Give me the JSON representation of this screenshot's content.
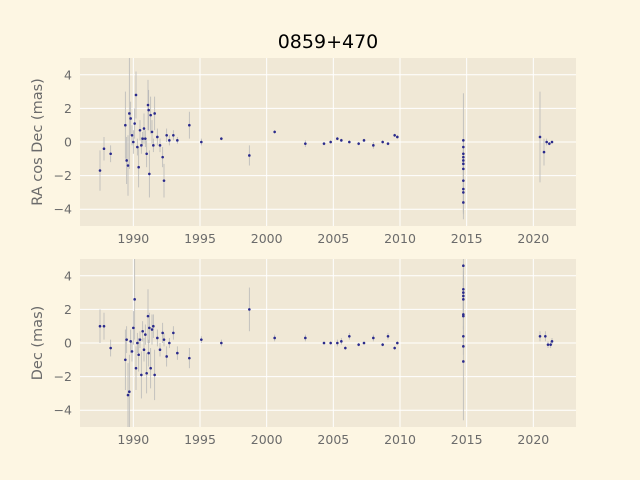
{
  "chart_data": [
    {
      "type": "scatter",
      "title": "0859+470",
      "ylabel": "RA cos Dec (mas)",
      "xlim": [
        1986,
        2023.2
      ],
      "ylim": [
        -5,
        5
      ],
      "xticks": [
        "1990",
        "1995",
        "2000",
        "2005",
        "2010",
        "2015",
        "2020"
      ],
      "yticks": [
        "4",
        "2",
        "0",
        "−2",
        "−4"
      ],
      "grid": true,
      "series": [
        {
          "points": [
            [
              1987.5,
              -1.7,
              1.2
            ],
            [
              1987.8,
              -0.4,
              0.7
            ],
            [
              1988.3,
              -0.7,
              0.5
            ],
            [
              1989.4,
              1.0,
              2.0
            ],
            [
              1989.5,
              -1.1,
              1.4
            ],
            [
              1989.6,
              -1.4,
              1.8
            ],
            [
              1989.7,
              1.7,
              3.3
            ],
            [
              1989.8,
              1.4,
              1.0
            ],
            [
              1989.9,
              0.4,
              0.6
            ],
            [
              1990.0,
              0.0,
              0.7
            ],
            [
              1990.1,
              1.1,
              0.9
            ],
            [
              1990.2,
              2.8,
              1.4
            ],
            [
              1990.3,
              -0.3,
              0.5
            ],
            [
              1990.4,
              -1.5,
              1.2
            ],
            [
              1990.5,
              0.7,
              0.6
            ],
            [
              1990.6,
              -0.2,
              0.5
            ],
            [
              1990.7,
              0.2,
              0.4
            ],
            [
              1990.8,
              0.8,
              0.9
            ],
            [
              1990.9,
              0.2,
              0.5
            ],
            [
              1991.0,
              -0.7,
              0.8
            ],
            [
              1991.1,
              2.2,
              1.5
            ],
            [
              1991.15,
              1.9,
              1.2
            ],
            [
              1991.2,
              -1.9,
              1.4
            ],
            [
              1991.3,
              1.6,
              1.1
            ],
            [
              1991.4,
              0.6,
              0.7
            ],
            [
              1991.5,
              -0.2,
              0.4
            ],
            [
              1991.6,
              1.7,
              1.0
            ],
            [
              1991.8,
              0.3,
              0.5
            ],
            [
              1992.0,
              -0.2,
              0.4
            ],
            [
              1992.2,
              -0.9,
              0.6
            ],
            [
              1992.3,
              -2.3,
              1.0
            ],
            [
              1992.5,
              0.4,
              0.4
            ],
            [
              1992.7,
              0.1,
              0.3
            ],
            [
              1993.0,
              0.4,
              0.3
            ],
            [
              1993.3,
              0.1,
              0.2
            ],
            [
              1994.2,
              1.0,
              0.8
            ],
            [
              1995.1,
              0.0,
              0.2
            ],
            [
              1996.6,
              0.2,
              0.1
            ],
            [
              1998.7,
              -0.8,
              0.6
            ],
            [
              2000.6,
              0.6,
              0.1
            ],
            [
              2002.9,
              -0.1,
              0.2
            ],
            [
              2004.3,
              -0.1,
              0.1
            ],
            [
              2004.8,
              0.0,
              0.1
            ],
            [
              2005.3,
              0.2,
              0.1
            ],
            [
              2005.6,
              0.1,
              0.1
            ],
            [
              2006.2,
              0.0,
              0.1
            ],
            [
              2006.9,
              -0.1,
              0.1
            ],
            [
              2007.3,
              0.1,
              0.1
            ],
            [
              2008.0,
              -0.2,
              0.2
            ],
            [
              2008.7,
              0.0,
              0.1
            ],
            [
              2009.1,
              -0.1,
              0.1
            ],
            [
              2009.6,
              0.4,
              0.1
            ],
            [
              2009.8,
              0.3,
              0.1
            ],
            [
              2014.75,
              0.1,
              2.8
            ],
            [
              2014.75,
              -0.3,
              0.4
            ],
            [
              2014.75,
              -0.7,
              0.6
            ],
            [
              2014.75,
              -0.9,
              0.7
            ],
            [
              2014.75,
              -1.1,
              0.5
            ],
            [
              2014.75,
              -1.3,
              0.8
            ],
            [
              2014.75,
              -1.6,
              1.0
            ],
            [
              2014.75,
              -2.3,
              1.2
            ],
            [
              2014.75,
              -2.8,
              1.4
            ],
            [
              2014.75,
              -3.0,
              1.3
            ],
            [
              2014.75,
              -3.6,
              1.0
            ],
            [
              2020.5,
              0.3,
              2.7
            ],
            [
              2020.8,
              -0.6,
              0.8
            ],
            [
              2021.0,
              0.0,
              0.2
            ],
            [
              2021.2,
              -0.1,
              0.1
            ],
            [
              2021.4,
              0.0,
              0.1
            ]
          ]
        }
      ]
    },
    {
      "type": "scatter",
      "ylabel": "Dec (mas)",
      "xlim": [
        1986,
        2023.2
      ],
      "ylim": [
        -5,
        5
      ],
      "xticks": [
        "1990",
        "1995",
        "2000",
        "2005",
        "2010",
        "2015",
        "2020"
      ],
      "yticks": [
        "4",
        "2",
        "0",
        "−2",
        "−4"
      ],
      "grid": true,
      "series": [
        {
          "points": [
            [
              1987.5,
              1.0,
              1.0
            ],
            [
              1987.8,
              1.0,
              0.8
            ],
            [
              1988.3,
              -0.3,
              0.5
            ],
            [
              1989.4,
              -1.0,
              1.8
            ],
            [
              1989.5,
              0.2,
              0.8
            ],
            [
              1989.6,
              -3.1,
              1.9
            ],
            [
              1989.7,
              -2.9,
              2.2
            ],
            [
              1989.8,
              0.1,
              0.7
            ],
            [
              1989.9,
              -0.5,
              0.6
            ],
            [
              1990.0,
              0.9,
              1.0
            ],
            [
              1990.1,
              2.6,
              2.4
            ],
            [
              1990.2,
              -1.5,
              1.3
            ],
            [
              1990.3,
              0.0,
              0.6
            ],
            [
              1990.4,
              -0.7,
              1.0
            ],
            [
              1990.5,
              0.2,
              0.5
            ],
            [
              1990.6,
              -1.9,
              1.4
            ],
            [
              1990.7,
              0.7,
              0.6
            ],
            [
              1990.8,
              -0.4,
              0.7
            ],
            [
              1990.9,
              0.5,
              0.6
            ],
            [
              1991.0,
              -1.8,
              1.2
            ],
            [
              1991.1,
              1.6,
              1.6
            ],
            [
              1991.15,
              -0.6,
              0.8
            ],
            [
              1991.2,
              0.9,
              0.9
            ],
            [
              1991.3,
              -1.5,
              1.2
            ],
            [
              1991.4,
              0.8,
              0.9
            ],
            [
              1991.5,
              1.0,
              0.7
            ],
            [
              1991.6,
              -1.9,
              1.5
            ],
            [
              1991.8,
              0.3,
              0.5
            ],
            [
              1992.0,
              -0.4,
              0.4
            ],
            [
              1992.2,
              0.6,
              0.6
            ],
            [
              1992.3,
              0.2,
              0.4
            ],
            [
              1992.5,
              -0.8,
              0.6
            ],
            [
              1992.7,
              0.0,
              0.3
            ],
            [
              1993.0,
              0.6,
              0.4
            ],
            [
              1993.3,
              -0.6,
              0.4
            ],
            [
              1994.2,
              -0.9,
              0.6
            ],
            [
              1995.1,
              0.2,
              0.2
            ],
            [
              1996.6,
              0.0,
              0.2
            ],
            [
              1998.7,
              2.0,
              1.3
            ],
            [
              2000.6,
              0.3,
              0.2
            ],
            [
              2002.9,
              0.3,
              0.2
            ],
            [
              2004.3,
              0.0,
              0.1
            ],
            [
              2004.8,
              0.0,
              0.1
            ],
            [
              2005.3,
              0.0,
              0.2
            ],
            [
              2005.6,
              0.1,
              0.2
            ],
            [
              2005.9,
              -0.3,
              0.1
            ],
            [
              2006.2,
              0.4,
              0.2
            ],
            [
              2006.9,
              -0.1,
              0.1
            ],
            [
              2007.3,
              0.0,
              0.1
            ],
            [
              2008.0,
              0.3,
              0.2
            ],
            [
              2008.7,
              -0.1,
              0.1
            ],
            [
              2009.1,
              0.4,
              0.2
            ],
            [
              2009.6,
              -0.3,
              0.1
            ],
            [
              2009.8,
              0.0,
              0.1
            ],
            [
              2014.75,
              4.6,
              2.5
            ],
            [
              2014.75,
              3.2,
              1.5
            ],
            [
              2014.75,
              3.0,
              1.3
            ],
            [
              2014.75,
              2.8,
              1.2
            ],
            [
              2014.75,
              2.6,
              1.0
            ],
            [
              2014.75,
              1.7,
              0.9
            ],
            [
              2014.75,
              1.6,
              0.8
            ],
            [
              2014.75,
              0.4,
              0.6
            ],
            [
              2014.75,
              -0.2,
              0.5
            ],
            [
              2014.75,
              -1.1,
              3.5
            ],
            [
              2020.5,
              0.4,
              0.3
            ],
            [
              2020.9,
              0.4,
              0.3
            ],
            [
              2021.1,
              -0.1,
              0.2
            ],
            [
              2021.3,
              -0.1,
              0.2
            ],
            [
              2021.4,
              0.1,
              0.2
            ]
          ]
        }
      ]
    }
  ]
}
